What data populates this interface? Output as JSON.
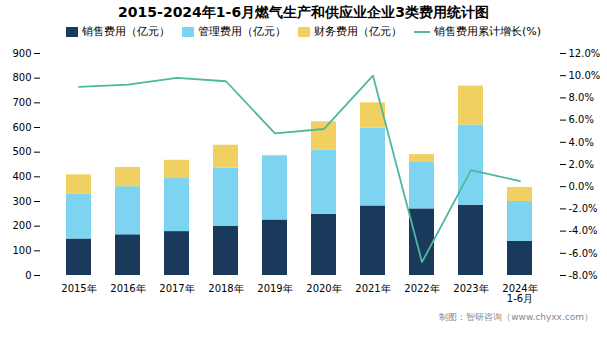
{
  "chart_data": {
    "type": "bar",
    "stacked": true,
    "title": "2015-2024年1-6月燃气生产和供应业企业3类费用统计图",
    "caption": "制图：智研咨询（www.chyxx.com）",
    "categories": [
      "2015年",
      "2016年",
      "2017年",
      "2018年",
      "2019年",
      "2020年",
      "2021年",
      "2022年",
      "2023年",
      "2024年\n1-6月"
    ],
    "series": [
      {
        "name": "销售费用（亿元）",
        "color": "#1a3a5c",
        "values": [
          148,
          165,
          178,
          200,
          225,
          248,
          282,
          270,
          285,
          138
        ]
      },
      {
        "name": "管理费用（亿元）",
        "color": "#7dd4f0",
        "values": [
          183,
          195,
          215,
          235,
          260,
          260,
          315,
          188,
          325,
          162
        ]
      },
      {
        "name": "财务费用（亿元）",
        "color": "#f0d060",
        "values": [
          77,
          78,
          74,
          93,
          2,
          115,
          103,
          32,
          158,
          57
        ]
      },
      {
        "name": "销售费用累计增长(%)",
        "type": "line",
        "axis": "y2",
        "color": "#4db8a0",
        "values": [
          9.0,
          9.2,
          9.8,
          9.5,
          4.8,
          5.2,
          10.0,
          -6.8,
          1.5,
          0.5
        ]
      }
    ],
    "ylim": [
      0,
      900
    ],
    "yticks": [
      0,
      100,
      200,
      300,
      400,
      500,
      600,
      700,
      800,
      900
    ],
    "y2lim": [
      -8.0,
      12.0
    ],
    "y2ticks": [
      {
        "value": -8.0,
        "label": "-8.0%"
      },
      {
        "value": -6.0,
        "label": "-6.0%"
      },
      {
        "value": -4.0,
        "label": "-4.0%"
      },
      {
        "value": -2.0,
        "label": "-2.0%"
      },
      {
        "value": 0.0,
        "label": "0.0%"
      },
      {
        "value": 2.0,
        "label": "2.0%"
      },
      {
        "value": 4.0,
        "label": "4.0%"
      },
      {
        "value": 6.0,
        "label": "6.0%"
      },
      {
        "value": 8.0,
        "label": "8.0%"
      },
      {
        "value": 10.0,
        "label": "10.0%"
      },
      {
        "value": 12.0,
        "label": "12.0%"
      }
    ],
    "grid": false,
    "legend": "top"
  }
}
